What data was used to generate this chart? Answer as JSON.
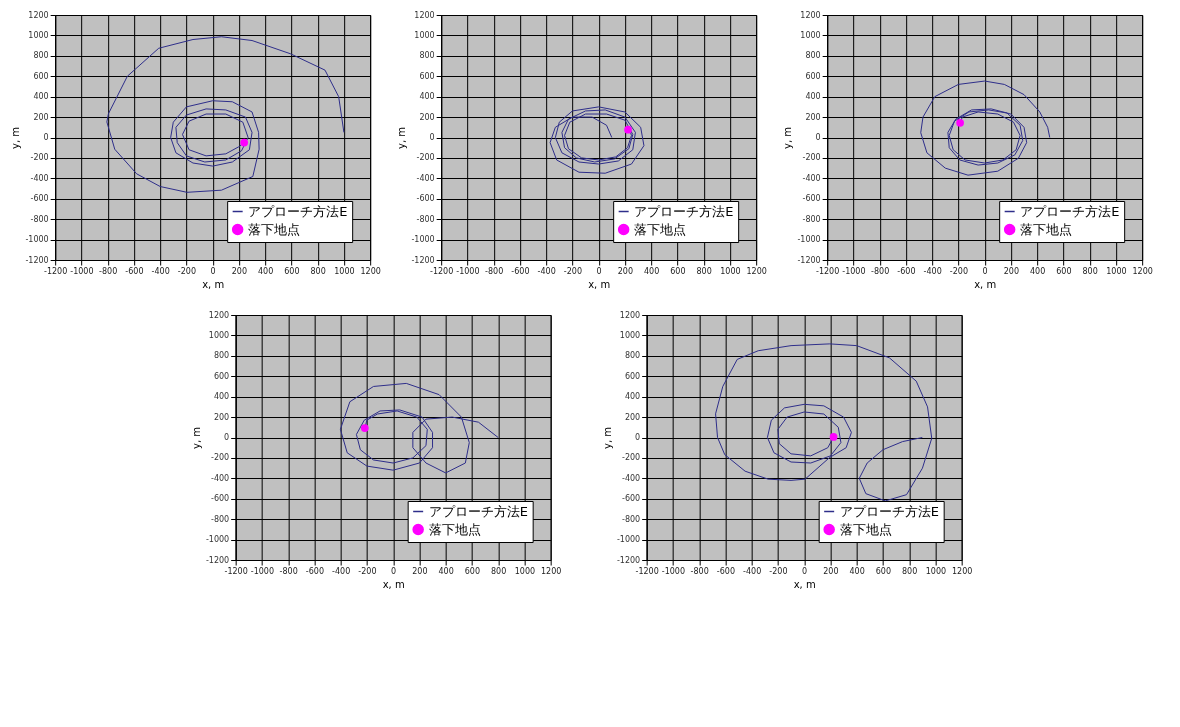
{
  "chart_data": [
    {
      "type": "line",
      "xlabel": "x, m",
      "ylabel": "y, m",
      "xlim": [
        -1200,
        1200
      ],
      "ylim": [
        -1200,
        1200
      ],
      "xticks": [
        -1200,
        -1000,
        -800,
        -600,
        -400,
        -200,
        0,
        200,
        400,
        600,
        800,
        1000,
        1200
      ],
      "yticks": [
        -1200,
        -1000,
        -800,
        -600,
        -400,
        -200,
        0,
        200,
        400,
        600,
        800,
        1000,
        1200
      ],
      "grid": true,
      "legend": "bottom right",
      "series": [
        {
          "name": "アプローチ方法E",
          "type": "line",
          "marker": "none",
          "color": "#2e2e8a",
          "x": [
            1000,
            960,
            856,
            593,
            300,
            67,
            -150,
            -411,
            -650,
            -794,
            -806,
            -746,
            -579,
            -400,
            -196,
            67,
            306,
            354,
            350,
            300,
            150,
            0,
            -200,
            -300,
            -320,
            -280,
            -150,
            0,
            150,
            280,
            300,
            250,
            100,
            -50,
            -200,
            -280,
            -270,
            -200,
            -60,
            100,
            220,
            270,
            230,
            100,
            -50,
            -180,
            -230,
            -180,
            -50,
            100,
            200,
            240
          ],
          "values": [
            50,
            400,
            660,
            820,
            950,
            987,
            960,
            874,
            600,
            233,
            152,
            -115,
            -356,
            -480,
            -537,
            -516,
            -382,
            -115,
            50,
            250,
            350,
            360,
            300,
            150,
            0,
            -150,
            -250,
            -280,
            -240,
            -120,
            50,
            200,
            270,
            280,
            220,
            100,
            -50,
            -180,
            -240,
            -220,
            -130,
            0,
            150,
            230,
            230,
            160,
            30,
            -120,
            -180,
            -160,
            -90,
            -50
          ]
        },
        {
          "name": "落下地点",
          "type": "scatter",
          "marker": "circle",
          "color": "#ff00ff",
          "x": [
            240
          ],
          "values": [
            -50
          ]
        }
      ]
    },
    {
      "type": "line",
      "xlabel": "x, m",
      "ylabel": "y, m",
      "xlim": [
        -1200,
        1200
      ],
      "ylim": [
        -1200,
        1200
      ],
      "xticks": [
        -1200,
        -1000,
        -800,
        -600,
        -400,
        -200,
        0,
        200,
        400,
        600,
        800,
        1000,
        1200
      ],
      "yticks": [
        -1200,
        -1000,
        -800,
        -600,
        -400,
        -200,
        0,
        200,
        400,
        600,
        800,
        1000,
        1200
      ],
      "grid": true,
      "legend": "bottom right",
      "series": [
        {
          "name": "アプローチ方法E",
          "type": "line",
          "marker": "none",
          "color": "#2e2e8a",
          "x": [
            100,
            60,
            -50,
            -200,
            -330,
            -370,
            -320,
            -150,
            50,
            250,
            345,
            320,
            200,
            0,
            -200,
            -300,
            -330,
            -280,
            -150,
            0,
            150,
            260,
            280,
            200,
            50,
            -100,
            -230,
            -280,
            -260,
            -170,
            -30,
            120,
            230,
            260,
            200,
            60,
            -100,
            -220,
            -260,
            -230,
            -130,
            0,
            130,
            220,
            250,
            240,
            224
          ],
          "values": [
            0,
            120,
            200,
            200,
            100,
            -50,
            -220,
            -340,
            -350,
            -260,
            -80,
            100,
            250,
            300,
            260,
            150,
            0,
            -150,
            -240,
            -260,
            -230,
            -120,
            50,
            200,
            270,
            260,
            180,
            50,
            -100,
            -200,
            -240,
            -210,
            -110,
            30,
            170,
            230,
            230,
            150,
            20,
            -110,
            -200,
            -220,
            -190,
            -100,
            20,
            60,
            76
          ]
        },
        {
          "name": "落下地点",
          "type": "scatter",
          "marker": "circle",
          "color": "#ff00ff",
          "x": [
            224
          ],
          "values": [
            76
          ]
        }
      ]
    },
    {
      "type": "line",
      "xlabel": "x, m",
      "ylabel": "y, m",
      "xlim": [
        -1200,
        1200
      ],
      "ylim": [
        -1200,
        1200
      ],
      "xticks": [
        -1200,
        -1000,
        -800,
        -600,
        -400,
        -200,
        0,
        200,
        400,
        600,
        800,
        1000,
        1200
      ],
      "yticks": [
        -1200,
        -1000,
        -800,
        -600,
        -400,
        -200,
        0,
        200,
        400,
        600,
        800,
        1000,
        1200
      ],
      "grid": true,
      "legend": "bottom right",
      "series": [
        {
          "name": "アプローチ方法E",
          "type": "line",
          "marker": "none",
          "color": "#2e2e8a",
          "x": [
            496,
            480,
            420,
            300,
            150,
            0,
            -200,
            -380,
            -470,
            -487,
            -440,
            -300,
            -127,
            100,
            257,
            320,
            300,
            200,
            50,
            -100,
            -220,
            -280,
            -270,
            -190,
            -50,
            100,
            230,
            290,
            270,
            170,
            30,
            -120,
            -230,
            -270,
            -240,
            -150,
            0,
            140,
            240,
            270,
            220,
            100,
            -50,
            -170,
            -187
          ],
          "values": [
            0,
            100,
            250,
            420,
            520,
            553,
            520,
            400,
            200,
            47,
            -150,
            -300,
            -369,
            -330,
            -203,
            -50,
            100,
            230,
            280,
            270,
            180,
            50,
            -100,
            -220,
            -270,
            -250,
            -170,
            -30,
            120,
            240,
            270,
            250,
            160,
            20,
            -120,
            -220,
            -250,
            -220,
            -120,
            20,
            150,
            230,
            250,
            200,
            144
          ]
        },
        {
          "name": "落下地点",
          "type": "scatter",
          "marker": "circle",
          "color": "#ff00ff",
          "x": [
            -187
          ],
          "values": [
            144
          ]
        }
      ]
    },
    {
      "type": "line",
      "xlabel": "x, m",
      "ylabel": "y, m",
      "xlim": [
        -1200,
        1200
      ],
      "ylim": [
        -1200,
        1200
      ],
      "xticks": [
        -1200,
        -1000,
        -800,
        -600,
        -400,
        -200,
        0,
        200,
        400,
        600,
        800,
        1000,
        1200
      ],
      "yticks": [
        -1200,
        -1000,
        -800,
        -600,
        -400,
        -200,
        0,
        200,
        400,
        600,
        800,
        1000,
        1200
      ],
      "grid": true,
      "legend": "bottom right",
      "series": [
        {
          "name": "アプローチ方法E",
          "type": "line",
          "marker": "none",
          "color": "#2e2e8a",
          "x": [
            800,
            650,
            450,
            250,
            150,
            150,
            250,
            400,
            550,
            580,
            520,
            350,
            100,
            -150,
            -330,
            -402,
            -350,
            -200,
            0,
            200,
            300,
            300,
            220,
            50,
            -100,
            -220,
            -280,
            -250,
            -150,
            0,
            150,
            250,
            260,
            180,
            30,
            -120,
            -200,
            -216
          ],
          "values": [
            0,
            150,
            200,
            180,
            50,
            -100,
            -250,
            -347,
            -250,
            -50,
            200,
            420,
            530,
            500,
            350,
            80,
            -150,
            -280,
            -320,
            -250,
            -100,
            50,
            200,
            270,
            260,
            170,
            30,
            -120,
            -220,
            -250,
            -200,
            -80,
            80,
            200,
            260,
            230,
            170,
            93
          ]
        },
        {
          "name": "落下地点",
          "type": "scatter",
          "marker": "circle",
          "color": "#ff00ff",
          "x": [
            -216
          ],
          "values": [
            93
          ]
        }
      ]
    },
    {
      "type": "line",
      "xlabel": "x, m",
      "ylabel": "y, m",
      "xlim": [
        -1200,
        1200
      ],
      "ylim": [
        -1200,
        1200
      ],
      "xticks": [
        -1200,
        -1000,
        -800,
        -600,
        -400,
        -200,
        0,
        200,
        400,
        600,
        800,
        1000,
        1200
      ],
      "yticks": [
        -1200,
        -1000,
        -800,
        -600,
        -400,
        -200,
        0,
        200,
        400,
        600,
        800,
        1000,
        1200
      ],
      "grid": true,
      "legend": "bottom right",
      "series": [
        {
          "name": "アプローチ方法E",
          "type": "line",
          "marker": "none",
          "color": "#2e2e8a",
          "x": [
            900,
            750,
            600,
            480,
            420,
            470,
            619,
            780,
            901,
            972,
            940,
            854,
            650,
            400,
            195,
            -100,
            -350,
            -510,
            -620,
            -675,
            -660,
            -605,
            -450,
            -275,
            -100,
            7,
            195,
            320,
            360,
            300,
            150,
            0,
            -150,
            -250,
            -280,
            -230,
            -100,
            50,
            200,
            280,
            260,
            150,
            0,
            -130,
            -200,
            -190,
            -100,
            50,
            180,
            224
          ],
          "values": [
            0,
            -40,
            -120,
            -250,
            -400,
            -550,
            -621,
            -560,
            -301,
            -8,
            300,
            552,
            780,
            900,
            917,
            900,
            850,
            765,
            500,
            232,
            0,
            -168,
            -330,
            -408,
            -420,
            -408,
            -195,
            -100,
            50,
            200,
            310,
            325,
            290,
            170,
            0,
            -150,
            -240,
            -250,
            -180,
            -50,
            100,
            230,
            250,
            200,
            80,
            -60,
            -160,
            -180,
            -100,
            5
          ]
        },
        {
          "name": "落下地点",
          "type": "scatter",
          "marker": "circle",
          "color": "#ff00ff",
          "x": [
            224
          ],
          "values": [
            5
          ]
        }
      ]
    }
  ]
}
